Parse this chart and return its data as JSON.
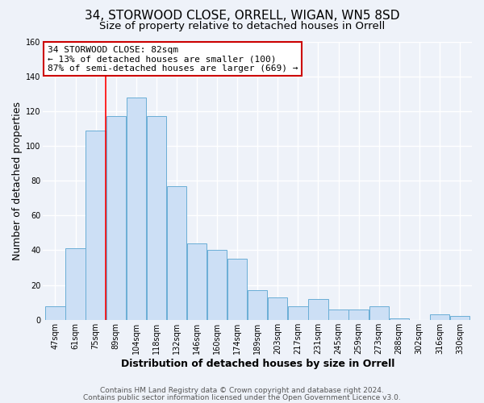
{
  "title": "34, STORWOOD CLOSE, ORRELL, WIGAN, WN5 8SD",
  "subtitle": "Size of property relative to detached houses in Orrell",
  "xlabel": "Distribution of detached houses by size in Orrell",
  "ylabel": "Number of detached properties",
  "bin_labels": [
    "47sqm",
    "61sqm",
    "75sqm",
    "89sqm",
    "104sqm",
    "118sqm",
    "132sqm",
    "146sqm",
    "160sqm",
    "174sqm",
    "189sqm",
    "203sqm",
    "217sqm",
    "231sqm",
    "245sqm",
    "259sqm",
    "273sqm",
    "288sqm",
    "302sqm",
    "316sqm",
    "330sqm"
  ],
  "bar_heights": [
    8,
    41,
    109,
    117,
    128,
    117,
    77,
    44,
    40,
    35,
    17,
    13,
    8,
    12,
    6,
    6,
    8,
    1,
    0,
    3,
    2
  ],
  "bar_color": "#ccdff5",
  "bar_edge_color": "#6aaed6",
  "vline_color": "red",
  "annotation_title": "34 STORWOOD CLOSE: 82sqm",
  "annotation_line1": "← 13% of detached houses are smaller (100)",
  "annotation_line2": "87% of semi-detached houses are larger (669) →",
  "annotation_box_color": "white",
  "annotation_box_edge": "#cc0000",
  "ylim": [
    0,
    160
  ],
  "yticks": [
    0,
    20,
    40,
    60,
    80,
    100,
    120,
    140,
    160
  ],
  "footer1": "Contains HM Land Registry data © Crown copyright and database right 2024.",
  "footer2": "Contains public sector information licensed under the Open Government Licence v3.0.",
  "background_color": "#eef2f9",
  "plot_bg_color": "#eef2f9",
  "grid_color": "#ffffff",
  "title_fontsize": 11,
  "subtitle_fontsize": 9.5,
  "axis_label_fontsize": 9,
  "tick_fontsize": 7,
  "footer_fontsize": 6.5,
  "annotation_fontsize": 8
}
